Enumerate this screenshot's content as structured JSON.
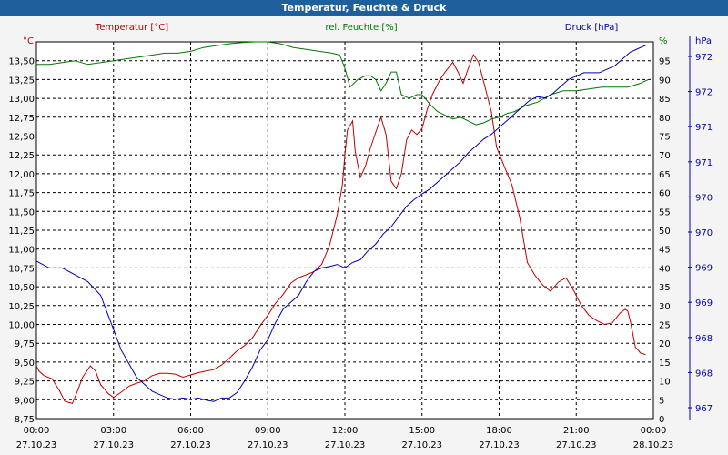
{
  "colors": {
    "title_bg": "#1e5f9c",
    "temperature": "#c00000",
    "humidity": "#007800",
    "pressure": "#0000b4",
    "grid": "#000000",
    "plot_bg": "#ffffff"
  },
  "chart_data": {
    "type": "line",
    "title": "Temperatur, Feuchte & Druck",
    "x_start_hours": 0,
    "x_end_hours": 24,
    "x_tick_labels": [
      {
        "time": "00:00",
        "date": "27.10.23"
      },
      {
        "time": "03:00",
        "date": "27.10.23"
      },
      {
        "time": "06:00",
        "date": "27.10.23"
      },
      {
        "time": "09:00",
        "date": "27.10.23"
      },
      {
        "time": "12:00",
        "date": "27.10.23"
      },
      {
        "time": "15:00",
        "date": "27.10.23"
      },
      {
        "time": "18:00",
        "date": "27.10.23"
      },
      {
        "time": "21:00",
        "date": "27.10.23"
      },
      {
        "time": "00:00",
        "date": "28.10.23"
      }
    ],
    "axes": {
      "temperature": {
        "label": "Temperatur [°C]",
        "unit": "°C",
        "ylim": [
          8.75,
          13.75
        ],
        "ticks": [
          "13,50",
          "13,25",
          "13,00",
          "12,75",
          "12,50",
          "12,25",
          "12,00",
          "11,75",
          "11,50",
          "11,25",
          "11,00",
          "10,75",
          "10,50",
          "10,25",
          "10,00",
          "9,75",
          "9,50",
          "9,25",
          "9,00",
          "8,75"
        ]
      },
      "humidity": {
        "label": "rel. Feuchte [%]",
        "unit": "%",
        "ylim": [
          0,
          100
        ],
        "ticks": [
          "95",
          "90",
          "85",
          "80",
          "75",
          "70",
          "65",
          "60",
          "55",
          "50",
          "45",
          "40",
          "35",
          "30",
          "25",
          "20",
          "15",
          "10",
          "5",
          "0"
        ]
      },
      "pressure": {
        "label": "Druck [hPa]",
        "unit": "hPa",
        "ylim": [
          967,
          972.5
        ],
        "ticks": [
          "972",
          "972",
          "971",
          "971",
          "970",
          "970",
          "969",
          "969",
          "968",
          "968",
          "967"
        ]
      }
    },
    "series": [
      {
        "name": "Temperatur",
        "axis": "temperature",
        "x": [
          0,
          0.1,
          0.3,
          0.6,
          0.9,
          1.1,
          1.4,
          1.6,
          1.8,
          2.1,
          2.3,
          2.5,
          2.8,
          3.0,
          3.3,
          3.6,
          3.9,
          4.2,
          4.5,
          4.8,
          5.1,
          5.4,
          5.7,
          6.0,
          6.3,
          6.6,
          6.9,
          7.2,
          7.5,
          7.8,
          8.1,
          8.4,
          8.7,
          9.0,
          9.3,
          9.6,
          9.9,
          10.2,
          10.5,
          10.8,
          11.1,
          11.4,
          11.7,
          11.9,
          12.0,
          12.1,
          12.3,
          12.4,
          12.6,
          12.8,
          13.0,
          13.2,
          13.4,
          13.6,
          13.8,
          14.0,
          14.2,
          14.4,
          14.6,
          14.8,
          15.0,
          15.2,
          15.4,
          15.7,
          15.9,
          16.2,
          16.4,
          16.6,
          16.8,
          17.0,
          17.2,
          17.4,
          17.7,
          17.9,
          18.2,
          18.5,
          18.8,
          19.1,
          19.4,
          19.7,
          20.0,
          20.3,
          20.6,
          20.9,
          21.2,
          21.5,
          21.8,
          22.1,
          22.4,
          22.7,
          22.9,
          23.0,
          23.1,
          23.3,
          23.5,
          23.7
        ],
        "values": [
          9.45,
          9.38,
          9.32,
          9.28,
          9.12,
          8.98,
          8.95,
          9.12,
          9.3,
          9.45,
          9.38,
          9.2,
          9.08,
          9.03,
          9.1,
          9.18,
          9.22,
          9.25,
          9.32,
          9.35,
          9.35,
          9.34,
          9.3,
          9.33,
          9.36,
          9.38,
          9.4,
          9.46,
          9.55,
          9.65,
          9.72,
          9.82,
          9.98,
          10.12,
          10.28,
          10.4,
          10.55,
          10.62,
          10.66,
          10.7,
          10.8,
          11.05,
          11.45,
          11.85,
          12.25,
          12.58,
          12.7,
          12.3,
          11.95,
          12.1,
          12.35,
          12.55,
          12.75,
          12.52,
          11.9,
          11.8,
          12.0,
          12.45,
          12.58,
          12.52,
          12.6,
          12.85,
          13.05,
          13.25,
          13.35,
          13.48,
          13.35,
          13.2,
          13.4,
          13.58,
          13.48,
          13.22,
          12.82,
          12.35,
          12.1,
          11.85,
          11.42,
          10.82,
          10.65,
          10.52,
          10.44,
          10.56,
          10.62,
          10.45,
          10.25,
          10.12,
          10.05,
          10.0,
          10.02,
          10.15,
          10.2,
          10.18,
          10.05,
          9.7,
          9.62,
          9.6
        ]
      },
      {
        "name": "rel. Feuchte",
        "axis": "humidity",
        "x": [
          0,
          0.5,
          1.0,
          1.5,
          2.0,
          2.5,
          3.0,
          3.5,
          4.0,
          4.5,
          5.0,
          5.5,
          6.0,
          6.5,
          7.0,
          7.5,
          8.0,
          8.5,
          9.0,
          9.5,
          10.0,
          10.5,
          11.0,
          11.5,
          11.8,
          12.0,
          12.2,
          12.5,
          12.8,
          13.0,
          13.2,
          13.4,
          13.6,
          13.8,
          14.0,
          14.2,
          14.5,
          14.8,
          15.0,
          15.3,
          15.6,
          15.9,
          16.2,
          16.5,
          16.8,
          17.1,
          17.4,
          17.7,
          18.0,
          18.3,
          18.6,
          19.0,
          19.5,
          20.0,
          20.5,
          21.0,
          21.5,
          22.0,
          22.5,
          23.0,
          23.5,
          23.8
        ],
        "values": [
          94,
          94,
          94.5,
          95,
          94,
          94.5,
          95,
          95.5,
          96,
          96.5,
          97,
          97,
          97.5,
          98.5,
          99,
          99.5,
          99.8,
          100,
          100,
          99.5,
          98.5,
          98,
          97.5,
          97,
          96.5,
          93,
          88,
          90,
          91,
          91,
          90,
          87,
          89,
          92,
          92,
          86,
          85,
          86,
          86,
          83.5,
          81.5,
          80.5,
          79.5,
          80,
          79,
          78,
          78.5,
          79.5,
          80,
          81,
          81.5,
          83,
          84,
          86,
          87,
          87,
          87.5,
          88,
          88,
          88,
          89,
          90
        ]
      },
      {
        "name": "Druck",
        "axis": "pressure",
        "x": [
          0,
          0.5,
          1.0,
          1.5,
          2.0,
          2.5,
          2.8,
          3.0,
          3.3,
          3.6,
          3.9,
          4.2,
          4.5,
          4.8,
          5.1,
          5.4,
          5.7,
          6.0,
          6.3,
          6.6,
          6.9,
          7.2,
          7.5,
          7.8,
          8.1,
          8.4,
          8.7,
          9.0,
          9.3,
          9.6,
          9.9,
          10.2,
          10.5,
          10.8,
          11.1,
          11.4,
          11.7,
          12.0,
          12.3,
          12.6,
          12.9,
          13.2,
          13.5,
          13.8,
          14.1,
          14.4,
          14.7,
          15.0,
          15.3,
          15.6,
          15.9,
          16.2,
          16.5,
          16.8,
          17.1,
          17.4,
          17.7,
          18.0,
          18.3,
          18.6,
          18.9,
          19.2,
          19.5,
          19.8,
          20.1,
          20.4,
          20.7,
          21.0,
          21.3,
          21.6,
          21.9,
          22.2,
          22.5,
          22.8,
          23.1,
          23.4,
          23.7
        ],
        "values": [
          969.3,
          969.2,
          969.2,
          969.1,
          969.0,
          968.8,
          968.5,
          968.3,
          968.0,
          967.8,
          967.6,
          967.5,
          967.4,
          967.35,
          967.3,
          967.28,
          967.3,
          967.28,
          967.3,
          967.27,
          967.25,
          967.3,
          967.3,
          967.38,
          967.55,
          967.75,
          968.0,
          968.15,
          968.4,
          968.6,
          968.7,
          968.8,
          969.0,
          969.15,
          969.2,
          969.22,
          969.25,
          969.2,
          969.28,
          969.32,
          969.45,
          969.55,
          969.7,
          969.8,
          969.95,
          970.1,
          970.2,
          970.28,
          970.35,
          970.45,
          970.55,
          970.65,
          970.75,
          970.88,
          970.98,
          971.08,
          971.15,
          971.25,
          971.35,
          971.45,
          971.55,
          971.65,
          971.7,
          971.68,
          971.75,
          971.85,
          971.95,
          972.0,
          972.05,
          972.05,
          972.05,
          972.1,
          972.15,
          972.25,
          972.35,
          972.4,
          972.45
        ]
      }
    ]
  }
}
